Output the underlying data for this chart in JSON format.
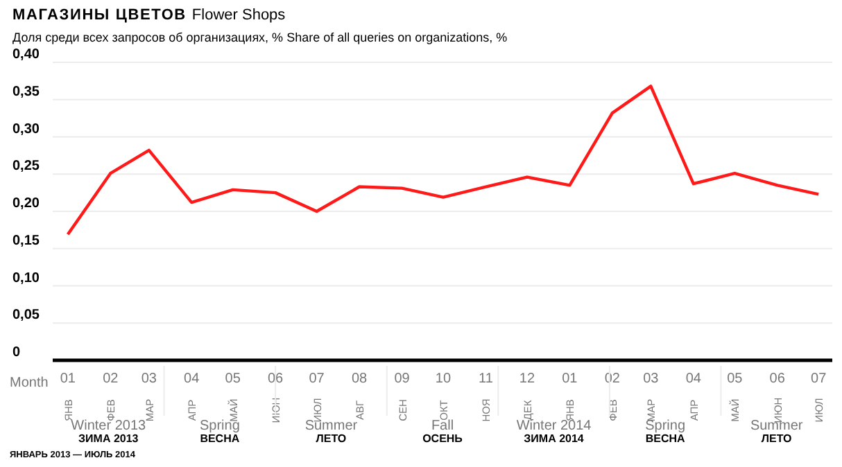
{
  "chart_data": {
    "type": "line",
    "title": "МАГАЗИНЫ ЦВЕТОВ",
    "subtitle": "Flower Shops",
    "ylabel": "Доля среди всех запросов об организациях, % Share of all queries on organizations, %",
    "xlabel": "Month",
    "x": [
      "2013-01",
      "2013-02",
      "2013-03",
      "2013-04",
      "2013-05",
      "2013-06",
      "2013-07",
      "2013-08",
      "2013-09",
      "2013-10",
      "2013-11",
      "2013-12",
      "2014-01",
      "2014-02",
      "2014-03",
      "2014-04",
      "2014-05",
      "2014-06",
      "2014-07"
    ],
    "series": [
      {
        "color": "#ff1a1a",
        "values": [
          0.169,
          0.251,
          0.282,
          0.212,
          0.229,
          0.225,
          0.2,
          0.233,
          0.231,
          0.219,
          0.233,
          0.246,
          0.235,
          0.332,
          0.368,
          0.237,
          0.251,
          0.235,
          0.223
        ]
      }
    ],
    "xlim": [
      "2012-12-21",
      "2014-07-11"
    ],
    "xticks": [
      {
        "value": "2013-01",
        "label": "01 ЯНВ"
      },
      {
        "value": "2013-02",
        "label": "02 ФЕВ"
      },
      {
        "value": "2013-03",
        "label": "03 МАР"
      },
      {
        "value": "2013-04",
        "label": "04 АПР"
      },
      {
        "value": "2013-05",
        "label": "05 МАЙ"
      },
      {
        "value": "2013-06",
        "label": "06 ИЮН"
      },
      {
        "value": "2013-07",
        "label": "07 ИЮЛ"
      },
      {
        "value": "2013-08",
        "label": "08 АВГ"
      },
      {
        "value": "2013-09",
        "label": "09 СЕН"
      },
      {
        "value": "2013-10",
        "label": "10 ОКТ"
      },
      {
        "value": "2013-11",
        "label": "11 НОЯ"
      },
      {
        "value": "2013-12",
        "label": "12 ДЕК"
      },
      {
        "value": "2014-01",
        "label": "01 ЯНВ"
      },
      {
        "value": "2014-02",
        "label": "02 ФЕВ"
      },
      {
        "value": "2014-03",
        "label": "03 МАР"
      },
      {
        "value": "2014-04",
        "label": "04 АПР"
      },
      {
        "value": "2014-05",
        "label": "05 МАЙ"
      },
      {
        "value": "2014-06",
        "label": "06 ИЮН"
      },
      {
        "value": "2014-07",
        "label": "07 ИЮЛ"
      }
    ],
    "ylim": [
      0,
      0.4
    ],
    "yticks": [
      0,
      {
        "value": 0.05,
        "label": "0,05"
      },
      {
        "value": 0.1,
        "label": "0,10"
      },
      {
        "value": 0.15,
        "label": "0,15"
      },
      {
        "value": 0.2,
        "label": "0,20"
      },
      {
        "value": 0.25,
        "label": "0,25"
      },
      {
        "value": 0.3,
        "label": "0,30"
      },
      {
        "value": 0.35,
        "label": "0,35"
      },
      {
        "value": 0.4,
        "label": "0,40"
      }
    ],
    "grid": "y",
    "marker": "none",
    "line_style": "solid",
    "annotations": [
      "Winter 2013",
      "ЗИМА 2013",
      "Spring",
      "ВЕСНА",
      "Summer",
      "ЛЕТО",
      "Fall",
      "ОСЕНЬ",
      "Winter 2014",
      "ЗИМА 2014",
      "Spring",
      "ВЕСНА",
      "Summer",
      "ЛЕТО",
      "ЯНВАРЬ 2013 — ИЮЛЬ 2014"
    ]
  }
}
